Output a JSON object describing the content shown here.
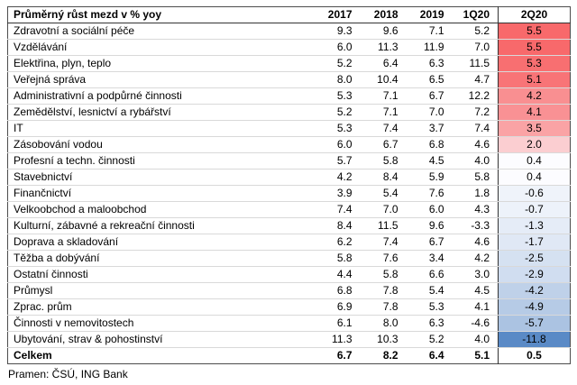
{
  "chart_data": {
    "type": "heatmap",
    "title": "Průměrný růst mezd v % yoy",
    "columns": [
      "2017",
      "2018",
      "2019",
      "1Q20",
      "2Q20"
    ],
    "heat_column": "2Q20",
    "scale": {
      "max_color": "#F8696B",
      "mid_color": "#FCFCFF",
      "min_color": "#5A8AC6"
    },
    "rows": [
      {
        "label": "Zdravotní a sociální péče",
        "values": [
          9.3,
          9.6,
          7.1,
          5.2,
          5.5
        ],
        "q2_color": "#F8696B"
      },
      {
        "label": "Vzdělávání",
        "values": [
          6.0,
          11.3,
          11.9,
          7.0,
          5.5
        ],
        "q2_color": "#F8696B"
      },
      {
        "label": "Elektřina, plyn, teplo",
        "values": [
          5.2,
          6.4,
          6.3,
          11.5,
          5.3
        ],
        "q2_color": "#F86F71"
      },
      {
        "label": "Veřejná správa",
        "values": [
          8.0,
          10.4,
          6.5,
          4.7,
          5.1
        ],
        "q2_color": "#F87477"
      },
      {
        "label": "Administrativní a podpůrné činnosti",
        "values": [
          5.3,
          7.1,
          6.7,
          12.2,
          4.2
        ],
        "q2_color": "#F98F91"
      },
      {
        "label": "Zemědělství, lesnictví a rybářství",
        "values": [
          5.2,
          7.1,
          7.0,
          7.2,
          4.1
        ],
        "q2_color": "#F99194"
      },
      {
        "label": "IT",
        "values": [
          5.3,
          7.4,
          3.7,
          7.4,
          3.5
        ],
        "q2_color": "#FAA3A5"
      },
      {
        "label": "Zásobování vodou",
        "values": [
          6.0,
          6.7,
          6.8,
          4.6,
          2.0
        ],
        "q2_color": "#FBCED1"
      },
      {
        "label": "Profesní a techn. činnosti",
        "values": [
          5.7,
          5.8,
          4.5,
          4.0,
          0.4
        ],
        "q2_color": "#FCFCFF"
      },
      {
        "label": "Stavebnictví",
        "values": [
          4.2,
          8.4,
          5.9,
          5.8,
          0.4
        ],
        "q2_color": "#FCFCFF"
      },
      {
        "label": "Finančnictví",
        "values": [
          3.9,
          5.4,
          7.6,
          1.8,
          -0.6
        ],
        "q2_color": "#EFF3FA"
      },
      {
        "label": "Velkoobchod a maloobchod",
        "values": [
          7.4,
          7.0,
          6.0,
          4.3,
          -0.7
        ],
        "q2_color": "#EDF2FA"
      },
      {
        "label": "Kulturní, zábavné a rekreační činnosti",
        "values": [
          8.4,
          11.5,
          9.6,
          -3.3,
          -1.3
        ],
        "q2_color": "#E5ECF7"
      },
      {
        "label": "Doprava a skladování",
        "values": [
          6.2,
          7.4,
          6.7,
          4.6,
          -1.7
        ],
        "q2_color": "#E0E8F5"
      },
      {
        "label": "Těžba a dobývání",
        "values": [
          5.8,
          7.6,
          3.4,
          4.2,
          -2.5
        ],
        "q2_color": "#D5E1F1"
      },
      {
        "label": "Ostatní činnosti",
        "values": [
          4.4,
          5.8,
          6.6,
          3.0,
          -2.9
        ],
        "q2_color": "#D0DDF0"
      },
      {
        "label": "Průmysl",
        "values": [
          6.8,
          7.8,
          5.4,
          4.5,
          -4.2
        ],
        "q2_color": "#BFD1E9"
      },
      {
        "label": "Zprac. prům",
        "values": [
          6.9,
          7.8,
          5.3,
          4.1,
          -4.9
        ],
        "q2_color": "#B6CBE6"
      },
      {
        "label": "Činnosti v nemovitostech",
        "values": [
          6.1,
          8.0,
          6.3,
          -4.6,
          -5.7
        ],
        "q2_color": "#ABC3E2"
      },
      {
        "label": "Ubytování, strav & pohostinství",
        "values": [
          11.3,
          10.3,
          5.2,
          4.0,
          -11.8
        ],
        "q2_color": "#5A8AC6"
      }
    ],
    "total": {
      "label": "Celkem",
      "values": [
        6.7,
        8.2,
        6.4,
        5.1,
        0.5
      ],
      "q2_color": "#FFFFFF"
    },
    "footer": "Pramen: ČSÚ, ING Bank"
  }
}
